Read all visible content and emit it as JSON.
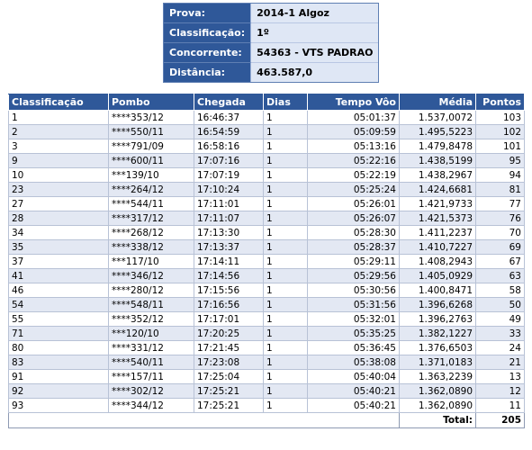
{
  "info": {
    "rows": [
      {
        "label": "Prova:",
        "value": "2014-1 Algoz"
      },
      {
        "label": "Classificação:",
        "value": "1º"
      },
      {
        "label": "Concorrente:",
        "value": "54363 - VTS PADRAO"
      },
      {
        "label": "Distância:",
        "value": "463.587,0"
      }
    ]
  },
  "table": {
    "headers": [
      "Classificação",
      "Pombo",
      "Chegada",
      "Dias",
      "Tempo Vôo",
      "Média",
      "Pontos"
    ],
    "rows": [
      [
        "1",
        "****353/12",
        "16:46:37",
        "1",
        "05:01:37",
        "1.537,0072",
        "103"
      ],
      [
        "2",
        "****550/11",
        "16:54:59",
        "1",
        "05:09:59",
        "1.495,5223",
        "102"
      ],
      [
        "3",
        "****791/09",
        "16:58:16",
        "1",
        "05:13:16",
        "1.479,8478",
        "101"
      ],
      [
        "9",
        "****600/11",
        "17:07:16",
        "1",
        "05:22:16",
        "1.438,5199",
        "95"
      ],
      [
        "10",
        "***139/10",
        "17:07:19",
        "1",
        "05:22:19",
        "1.438,2967",
        "94"
      ],
      [
        "23",
        "****264/12",
        "17:10:24",
        "1",
        "05:25:24",
        "1.424,6681",
        "81"
      ],
      [
        "27",
        "****544/11",
        "17:11:01",
        "1",
        "05:26:01",
        "1.421,9733",
        "77"
      ],
      [
        "28",
        "****317/12",
        "17:11:07",
        "1",
        "05:26:07",
        "1.421,5373",
        "76"
      ],
      [
        "34",
        "****268/12",
        "17:13:30",
        "1",
        "05:28:30",
        "1.411,2237",
        "70"
      ],
      [
        "35",
        "****338/12",
        "17:13:37",
        "1",
        "05:28:37",
        "1.410,7227",
        "69"
      ],
      [
        "37",
        "***117/10",
        "17:14:11",
        "1",
        "05:29:11",
        "1.408,2943",
        "67"
      ],
      [
        "41",
        "****346/12",
        "17:14:56",
        "1",
        "05:29:56",
        "1.405,0929",
        "63"
      ],
      [
        "46",
        "****280/12",
        "17:15:56",
        "1",
        "05:30:56",
        "1.400,8471",
        "58"
      ],
      [
        "54",
        "****548/11",
        "17:16:56",
        "1",
        "05:31:56",
        "1.396,6268",
        "50"
      ],
      [
        "55",
        "****352/12",
        "17:17:01",
        "1",
        "05:32:01",
        "1.396,2763",
        "49"
      ],
      [
        "71",
        "***120/10",
        "17:20:25",
        "1",
        "05:35:25",
        "1.382,1227",
        "33"
      ],
      [
        "80",
        "****331/12",
        "17:21:45",
        "1",
        "05:36:45",
        "1.376,6503",
        "24"
      ],
      [
        "83",
        "****540/11",
        "17:23:08",
        "1",
        "05:38:08",
        "1.371,0183",
        "21"
      ],
      [
        "91",
        "****157/11",
        "17:25:04",
        "1",
        "05:40:04",
        "1.363,2239",
        "13"
      ],
      [
        "92",
        "****302/12",
        "17:25:21",
        "1",
        "05:40:21",
        "1.362,0890",
        "12"
      ],
      [
        "93",
        "****344/12",
        "17:25:21",
        "1",
        "05:40:21",
        "1.362,0890",
        "11"
      ]
    ],
    "total_label": "Total:",
    "total_value": "205"
  }
}
